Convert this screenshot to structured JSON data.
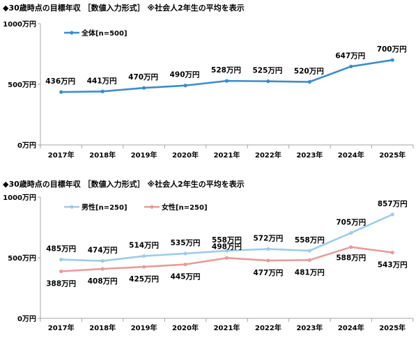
{
  "chart_data": [
    {
      "type": "line",
      "title": "◆30歳時点の目標年収 ［数値入力形式］ ※社会人2年生の平均を表示",
      "categories": [
        "2017年",
        "2018年",
        "2019年",
        "2020年",
        "2021年",
        "2022年",
        "2023年",
        "2024年",
        "2025年"
      ],
      "y_ticks": [
        "0万円",
        "500万円",
        "1000万円"
      ],
      "ylim": [
        0,
        1000
      ],
      "grid": false,
      "legend_position": "top-left",
      "series": [
        {
          "name": "全体[n=500]",
          "color": "#3a8ccd",
          "values": [
            436,
            441,
            470,
            490,
            528,
            525,
            520,
            647,
            700
          ],
          "labels": [
            "436万円",
            "441万円",
            "470万円",
            "490万円",
            "528万円",
            "525万円",
            "520万円",
            "647万円",
            "700万円"
          ]
        }
      ]
    },
    {
      "type": "line",
      "title": "◆30歳時点の目標年収 ［数値入力形式］ ※社会人2年生の平均を表示",
      "categories": [
        "2017年",
        "2018年",
        "2019年",
        "2020年",
        "2021年",
        "2022年",
        "2023年",
        "2024年",
        "2025年"
      ],
      "y_ticks": [
        "0万円",
        "500万円",
        "1000万円"
      ],
      "ylim": [
        0,
        1000
      ],
      "grid": false,
      "legend_position": "top-left",
      "series": [
        {
          "name": "男性[n=250]",
          "color": "#9ecbea",
          "values": [
            485,
            474,
            514,
            535,
            558,
            572,
            558,
            705,
            857
          ],
          "labels": [
            "485万円",
            "474万円",
            "514万円",
            "535万円",
            "558万円",
            "572万円",
            "558万円",
            "705万円",
            "857万円"
          ]
        },
        {
          "name": "女性[n=250]",
          "color": "#e99a9a",
          "values": [
            388,
            408,
            425,
            445,
            498,
            477,
            481,
            588,
            543
          ],
          "labels": [
            "388万円",
            "408万円",
            "425万円",
            "445万円",
            "498万円",
            "477万円",
            "481万円",
            "588万円",
            "543万円"
          ]
        }
      ]
    }
  ]
}
